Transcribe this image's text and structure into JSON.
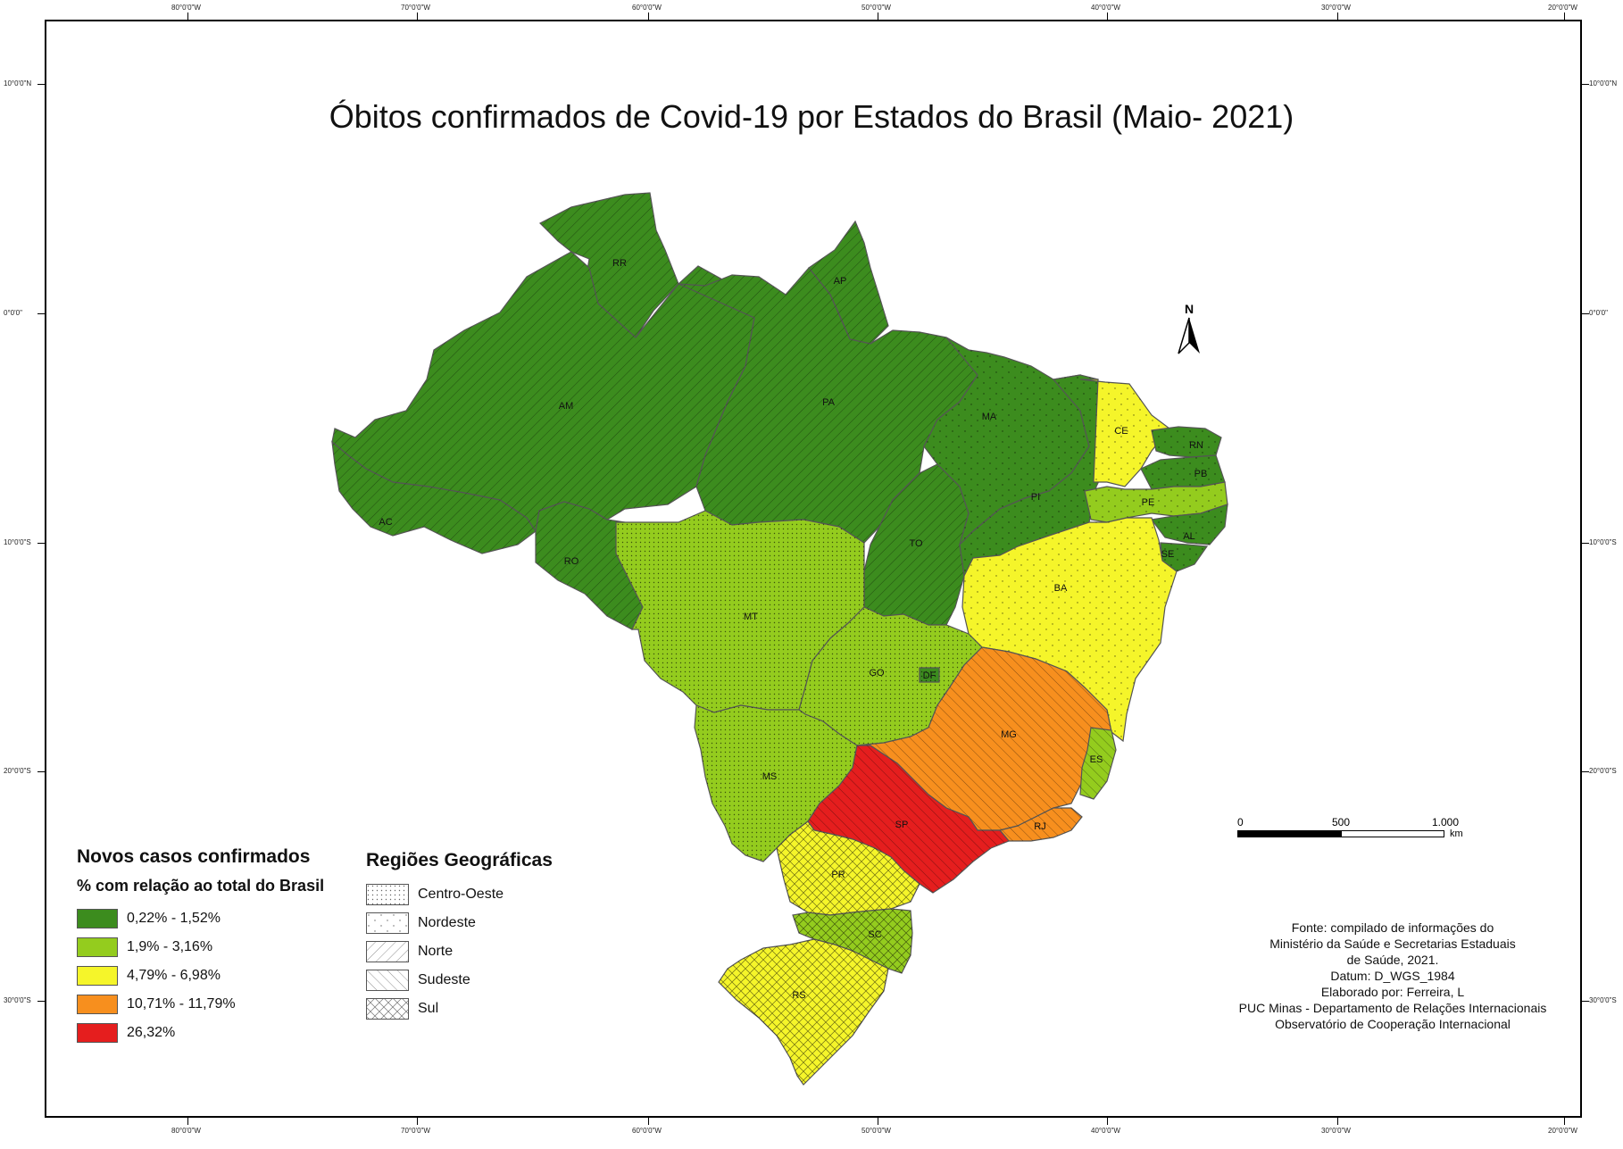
{
  "title": "Óbitos confirmados de Covid-19 por Estados do Brasil (Maio- 2021)",
  "graticule": {
    "lon_labels": [
      "80°0'0\"W",
      "70°0'0\"W",
      "60°0'0\"W",
      "50°0'0\"W",
      "40°0'0\"W",
      "30°0'0\"W",
      "20°0'0\"W"
    ],
    "lat_labels": [
      "10°0'0\"N",
      "0°0'0\"",
      "10°0'0\"S",
      "20°0'0\"S",
      "30°0'0\"S"
    ]
  },
  "states": [
    {
      "abbr": "RR",
      "class": 1,
      "region": "Norte"
    },
    {
      "abbr": "AP",
      "class": 1,
      "region": "Norte"
    },
    {
      "abbr": "AM",
      "class": 1,
      "region": "Norte"
    },
    {
      "abbr": "PA",
      "class": 1,
      "region": "Norte"
    },
    {
      "abbr": "AC",
      "class": 1,
      "region": "Norte"
    },
    {
      "abbr": "RO",
      "class": 1,
      "region": "Norte"
    },
    {
      "abbr": "TO",
      "class": 1,
      "region": "Norte"
    },
    {
      "abbr": "MA",
      "class": 1,
      "region": "Nordeste"
    },
    {
      "abbr": "PI",
      "class": 1,
      "region": "Nordeste"
    },
    {
      "abbr": "CE",
      "class": 3,
      "region": "Nordeste"
    },
    {
      "abbr": "RN",
      "class": 1,
      "region": "Nordeste"
    },
    {
      "abbr": "PB",
      "class": 1,
      "region": "Nordeste"
    },
    {
      "abbr": "PE",
      "class": 2,
      "region": "Nordeste"
    },
    {
      "abbr": "AL",
      "class": 1,
      "region": "Nordeste"
    },
    {
      "abbr": "SE",
      "class": 1,
      "region": "Nordeste"
    },
    {
      "abbr": "BA",
      "class": 3,
      "region": "Nordeste"
    },
    {
      "abbr": "MT",
      "class": 2,
      "region": "Centro-Oeste"
    },
    {
      "abbr": "GO",
      "class": 2,
      "region": "Centro-Oeste"
    },
    {
      "abbr": "DF",
      "class": 1,
      "region": "Centro-Oeste"
    },
    {
      "abbr": "MS",
      "class": 2,
      "region": "Centro-Oeste"
    },
    {
      "abbr": "MG",
      "class": 4,
      "region": "Sudeste"
    },
    {
      "abbr": "ES",
      "class": 2,
      "region": "Sudeste"
    },
    {
      "abbr": "RJ",
      "class": 4,
      "region": "Sudeste"
    },
    {
      "abbr": "SP",
      "class": 5,
      "region": "Sudeste"
    },
    {
      "abbr": "PR",
      "class": 3,
      "region": "Sul"
    },
    {
      "abbr": "SC",
      "class": 2,
      "region": "Sul"
    },
    {
      "abbr": "RS",
      "class": 3,
      "region": "Sul"
    }
  ],
  "legend_cases": {
    "title": "Novos casos confirmados",
    "subtitle": "% com relação ao total do Brasil",
    "items": [
      {
        "label": "0,22% - 1,52%",
        "color": "#3c8c1e"
      },
      {
        "label": "1,9% - 3,16%",
        "color": "#94cc1e"
      },
      {
        "label": "4,79% - 6,98%",
        "color": "#f5f52a"
      },
      {
        "label": "10,71% - 11,79%",
        "color": "#f78f1e"
      },
      {
        "label": "26,32%",
        "color": "#e51e1e"
      }
    ]
  },
  "legend_regions": {
    "title": "Regiões Geográficas",
    "items": [
      {
        "label": "Centro-Oeste",
        "pattern": "dots"
      },
      {
        "label": "Nordeste",
        "pattern": "triangles"
      },
      {
        "label": "Norte",
        "pattern": "diag-fwd"
      },
      {
        "label": "Sudeste",
        "pattern": "diag-back"
      },
      {
        "label": "Sul",
        "pattern": "cross"
      }
    ]
  },
  "north_arrow": {
    "label": "N"
  },
  "scale_bar": {
    "ticks": [
      "0",
      "500",
      "1.000"
    ],
    "unit": "km"
  },
  "credits": [
    "Fonte: compilado de informações do",
    "Ministério da Saúde e Secretarias Estaduais",
    "de Saúde, 2021.",
    "Datum: D_WGS_1984",
    "Elaborado por: Ferreira, L",
    "PUC Minas - Departamento de Relações Internacionais",
    "Observatório de Cooperação Internacional"
  ]
}
